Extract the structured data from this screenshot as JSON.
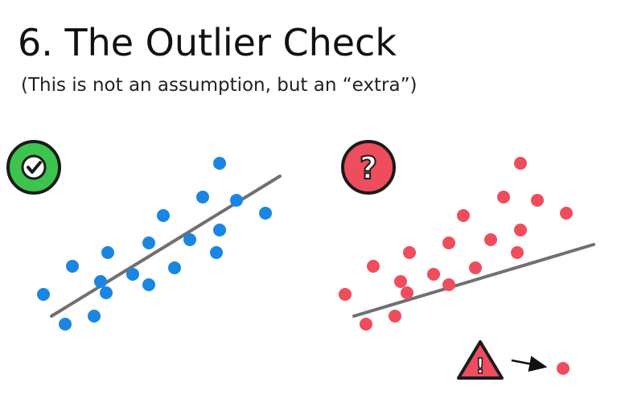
{
  "slide": {
    "title": "6. The Outlier Check",
    "subtitle": "(This is not an assumption, but an “extra”)"
  },
  "colors": {
    "good_points": "#1a86e2",
    "bad_points": "#ee4d5d",
    "trend_line": "#707070",
    "check_badge": "#3cc44f",
    "question_badge": "#ee4d5d",
    "warning_triangle": "#ee4d5d",
    "outline": "#1b1b1b"
  },
  "icons": {
    "good_badge": "check-mark-icon",
    "bad_badge": "question-mark-icon",
    "warning": "warning-triangle-icon",
    "arrow": "arrow-right-icon"
  },
  "badges": {
    "question_glyph": "?",
    "warning_glyph": "!"
  }
}
